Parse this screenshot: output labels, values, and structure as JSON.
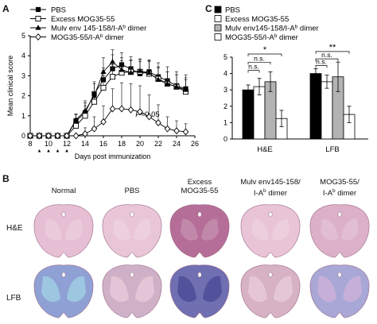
{
  "panel_letters": {
    "a": "A",
    "b": "B",
    "c": "C"
  },
  "colors": {
    "hne": "#d9a6c0",
    "hne_dark": "#b9789a",
    "lfb": "#8fa0d4",
    "lfb_dark": "#6f6fb2",
    "lfb_pink": "#c99ab8"
  },
  "chart_data": [
    {
      "type": "line",
      "panel": "A",
      "xlabel": "Days post immunization",
      "ylabel": "Mean clinical score",
      "xlim": [
        8,
        26
      ],
      "ylim": [
        0,
        5
      ],
      "xticks": [
        "8",
        "10",
        "12",
        "14",
        "16",
        "18",
        "20",
        "22",
        "24",
        "26"
      ],
      "yticks": [
        "0",
        "1",
        "2",
        "3",
        "4",
        "5"
      ],
      "annotation": "P<0.05",
      "injection_markers": [
        9,
        10,
        11,
        12
      ],
      "series": [
        {
          "name": "PBS",
          "marker": "square-filled",
          "x": [
            8,
            9,
            10,
            11,
            12,
            13,
            14,
            15,
            16,
            17,
            18,
            19,
            20,
            21,
            22,
            23,
            24,
            25
          ],
          "y": [
            0,
            0,
            0,
            0,
            0,
            0.75,
            1.15,
            2.1,
            2.8,
            3.35,
            3.55,
            3.35,
            3.1,
            3.2,
            2.95,
            2.75,
            2.5,
            2.35
          ],
          "err": [
            0,
            0,
            0,
            0,
            0,
            0.3,
            0.5,
            0.6,
            0.6,
            0.7,
            0.6,
            0.6,
            0.6,
            0.6,
            0.7,
            0.7,
            0.7,
            0.7
          ]
        },
        {
          "name": "Excess MOG35-55",
          "marker": "square-open",
          "x": [
            8,
            9,
            10,
            11,
            12,
            13,
            14,
            15,
            16,
            17,
            18,
            19,
            20,
            21,
            22,
            23,
            24,
            25
          ],
          "y": [
            0,
            0,
            0,
            0,
            0,
            0.5,
            1.0,
            1.7,
            2.4,
            2.95,
            3.15,
            3.2,
            3.2,
            3.1,
            2.85,
            2.6,
            2.45,
            2.2
          ],
          "err": [
            0,
            0,
            0,
            0,
            0,
            0.3,
            0.5,
            0.5,
            0.6,
            0.6,
            0.6,
            0.6,
            0.6,
            0.6,
            0.6,
            0.6,
            0.6,
            0.6
          ]
        },
        {
          "name": "Mulv env 145-158/I-Ab dimer",
          "marker": "triangle-filled",
          "x": [
            8,
            9,
            10,
            11,
            12,
            13,
            14,
            15,
            16,
            17,
            18,
            19,
            20,
            21,
            22,
            23,
            24,
            25
          ],
          "y": [
            0,
            0,
            0,
            0,
            0,
            0.8,
            1.25,
            2.0,
            3.2,
            3.7,
            3.3,
            3.15,
            3.25,
            3.15,
            2.8,
            2.6,
            2.45,
            2.3
          ],
          "err": [
            0,
            0,
            0,
            0,
            0,
            0.3,
            0.5,
            0.6,
            0.7,
            0.6,
            0.6,
            0.6,
            0.6,
            0.6,
            0.6,
            0.6,
            0.6,
            0.6
          ]
        },
        {
          "name": "MOG35-55/I-Ab dimer",
          "marker": "diamond-open",
          "x": [
            8,
            9,
            10,
            11,
            12,
            13,
            14,
            15,
            16,
            17,
            18,
            19,
            20,
            21,
            22,
            23,
            24,
            25
          ],
          "y": [
            0,
            0,
            0,
            0,
            0,
            0,
            0.1,
            0.35,
            0.7,
            1.35,
            1.35,
            1.3,
            1.2,
            0.95,
            0.65,
            0.35,
            0.25,
            0.2
          ],
          "err": [
            0,
            0,
            0,
            0,
            0,
            0,
            0.3,
            0.6,
            0.8,
            1.0,
            1.3,
            1.3,
            1.3,
            1.1,
            0.9,
            0.6,
            0.5,
            0.4
          ]
        }
      ]
    },
    {
      "type": "bar",
      "panel": "C",
      "categories": [
        "H&E",
        "LFB"
      ],
      "ylim": [
        0,
        5
      ],
      "yticks": [
        "0",
        "1",
        "2",
        "3",
        "4",
        "5"
      ],
      "series": [
        {
          "name": "PBS",
          "fill": "#000000",
          "values": [
            3.0,
            4.0
          ],
          "err": [
            0.3,
            0.3
          ]
        },
        {
          "name": "Excess MOG35-55",
          "fill": "#ffffff",
          "values": [
            3.2,
            3.5
          ],
          "err": [
            0.5,
            0.4
          ]
        },
        {
          "name": "Mulv env145-158/I-Ab dimer",
          "fill": "#b3b3b3",
          "values": [
            3.5,
            3.8
          ],
          "err": [
            0.6,
            0.9
          ]
        },
        {
          "name": "MOG35-55/I-Ab dimer",
          "fill": "#ffffff",
          "values": [
            1.25,
            1.5
          ],
          "err": [
            0.5,
            0.5
          ]
        }
      ],
      "significance": [
        {
          "group": "H&E",
          "pairs": [
            [
              "n.s.",
              0,
              1
            ],
            [
              "n.s.",
              0,
              2
            ],
            [
              "*",
              0,
              3
            ]
          ]
        },
        {
          "group": "LFB",
          "pairs": [
            [
              "n.s.",
              0,
              1
            ],
            [
              "n.s.",
              0,
              2
            ],
            [
              "**",
              0,
              3
            ]
          ]
        }
      ]
    }
  ],
  "histology": {
    "columns": [
      "Normal",
      "PBS",
      "Excess\nMOG35-55",
      "Mulv env145-158/\nI-Ab dimer",
      "MOG35-55/\nI-Ab dimer"
    ],
    "rows": [
      "H&E",
      "LFB"
    ]
  }
}
